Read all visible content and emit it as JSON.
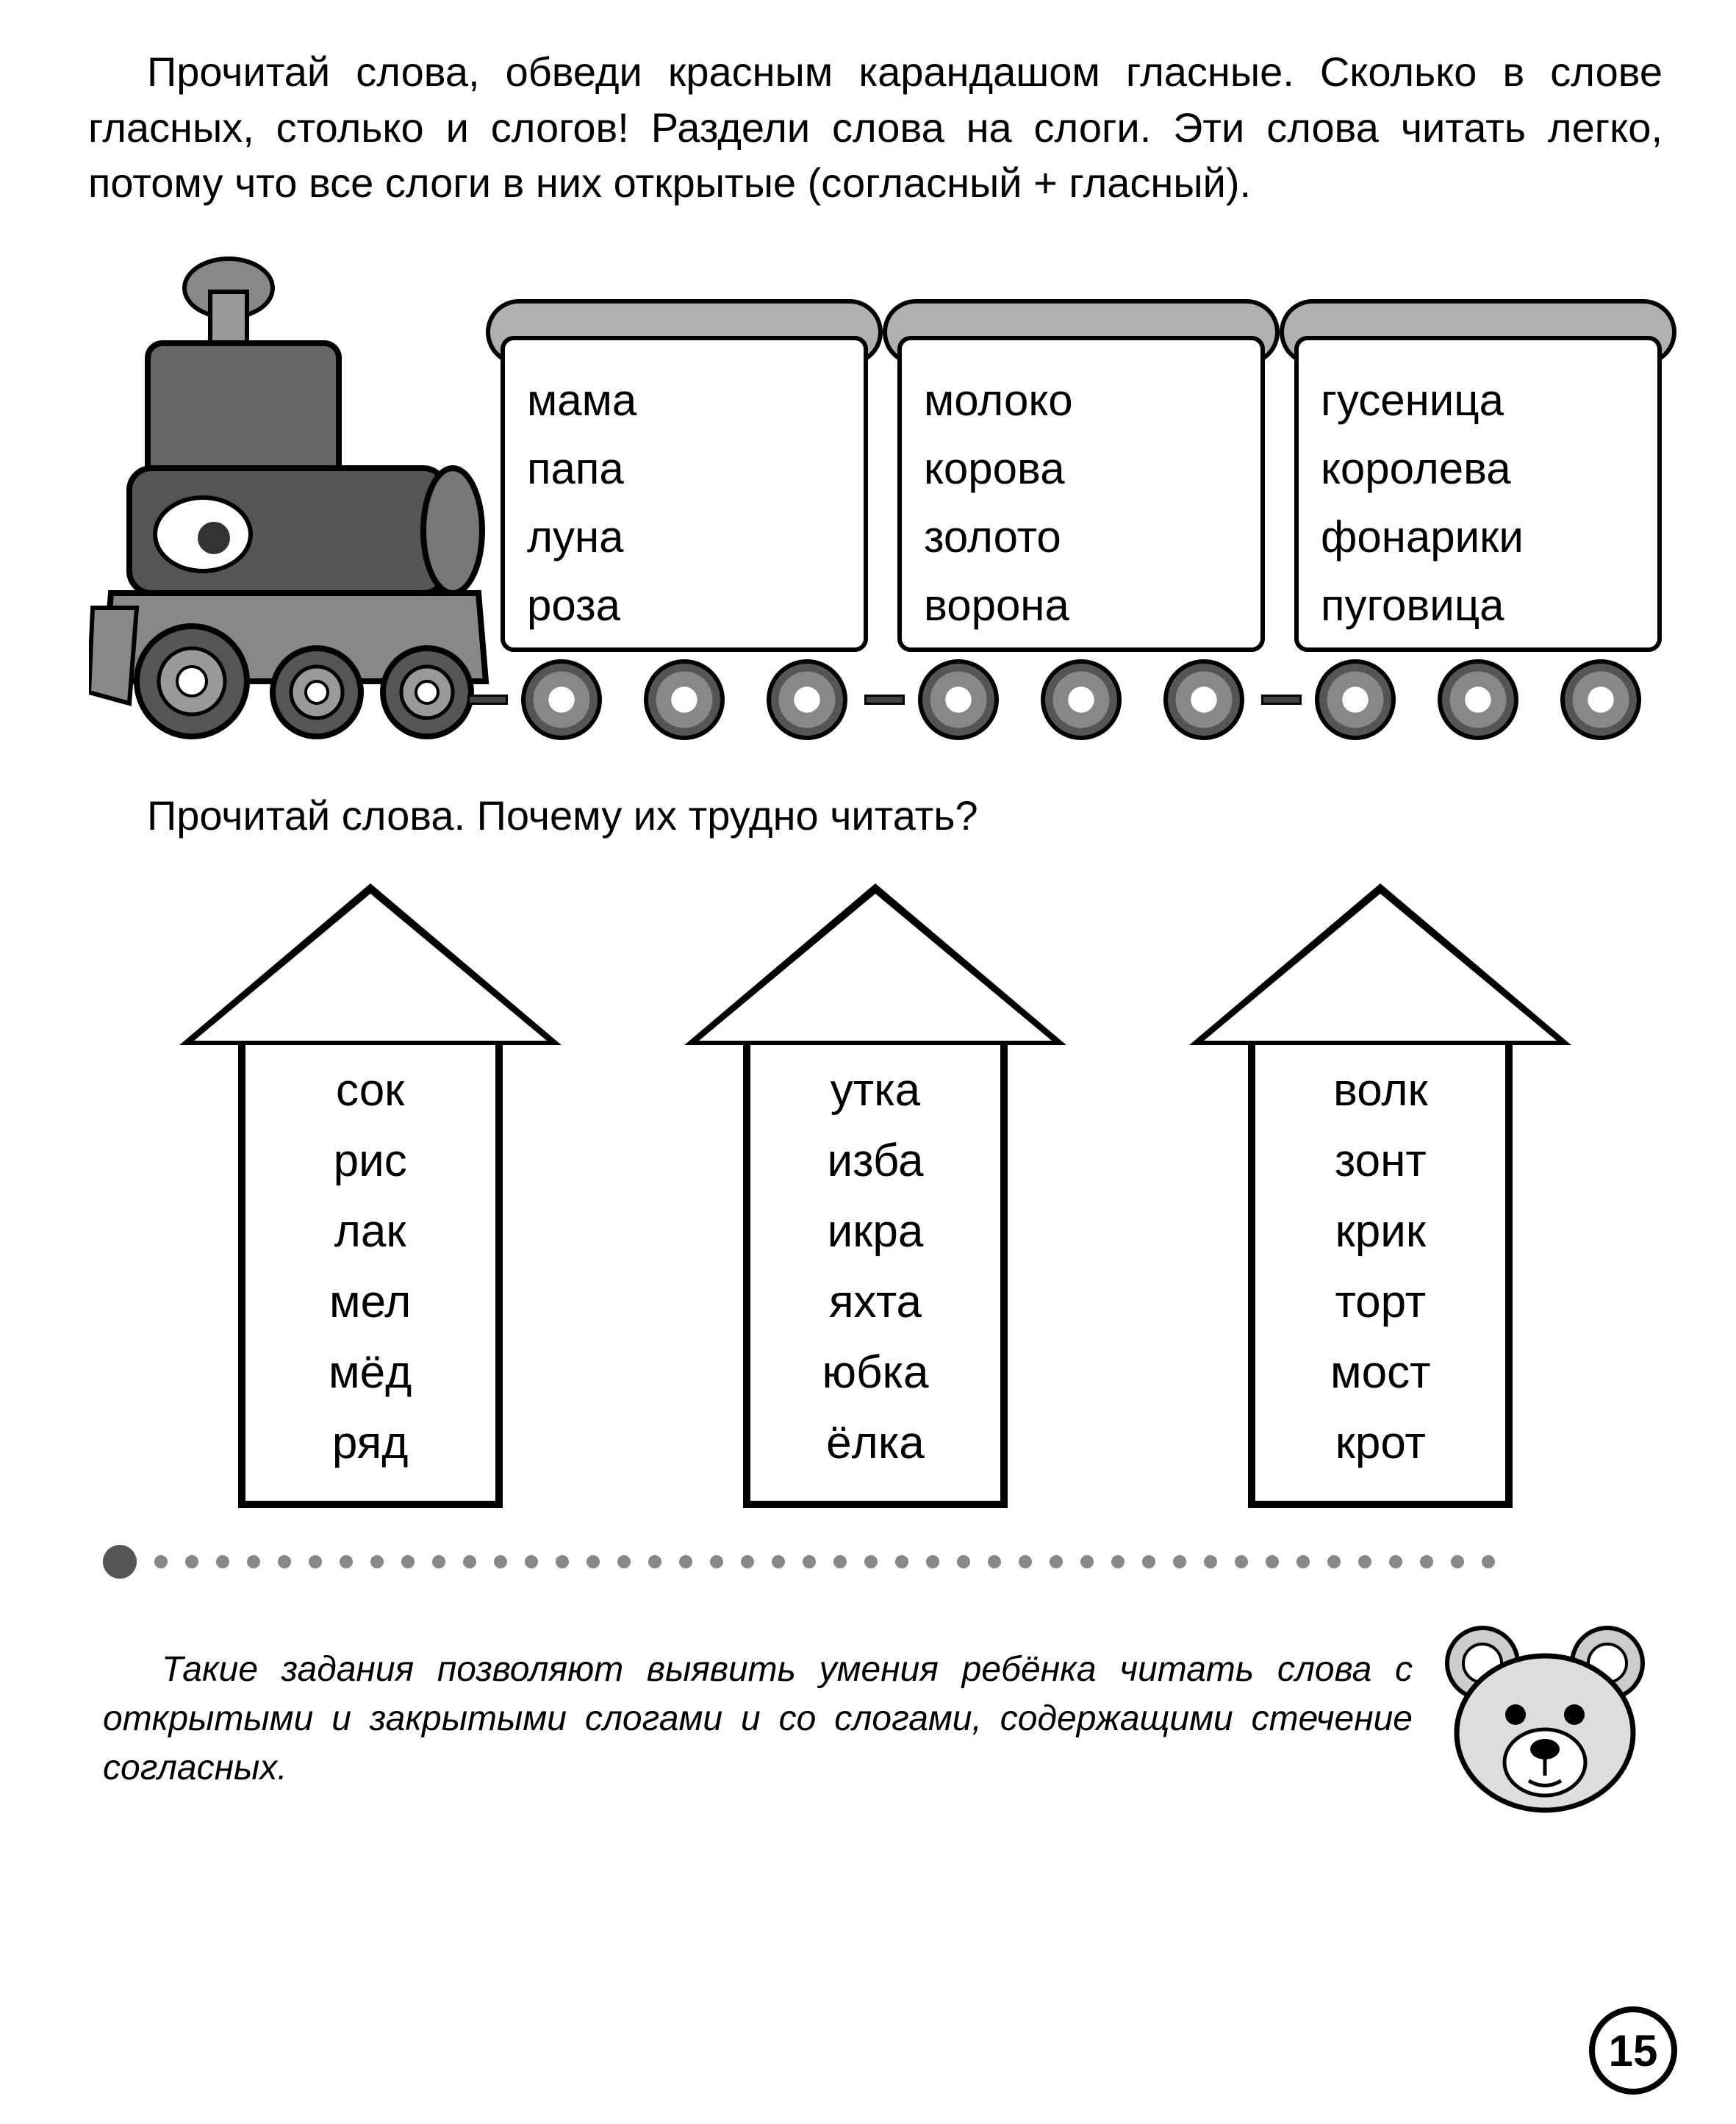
{
  "instruction": "Прочитай слова, обведи красным карандашом гласные. Сколько в слове гласных, столько и слогов! Раздели слова на слоги. Эти слова читать легко, потому что все слоги в них открытые (согласный + гласный).",
  "train": {
    "wagons": [
      {
        "words": [
          "мама",
          "папа",
          "луна",
          "роза"
        ]
      },
      {
        "words": [
          "молоко",
          "корова",
          "золото",
          "ворона"
        ]
      },
      {
        "words": [
          "гусеница",
          "королева",
          "фонарики",
          "пуговица"
        ]
      }
    ],
    "colors": {
      "lid": "#b0b0b0",
      "body": "#ffffff",
      "outline": "#000000",
      "wheel_outer": "#555555",
      "wheel_mid": "#888888",
      "wheel_inner": "#ffffff"
    },
    "word_fontsize": 60
  },
  "question": "Прочитай слова. Почему их трудно читать?",
  "arrows": [
    {
      "words": [
        "сок",
        "рис",
        "лак",
        "мел",
        "мёд",
        "ряд"
      ]
    },
    {
      "words": [
        "утка",
        "изба",
        "икра",
        "яхта",
        "юбка",
        "ёлка"
      ]
    },
    {
      "words": [
        "волк",
        "зонт",
        "крик",
        "торт",
        "мост",
        "крот"
      ]
    }
  ],
  "arrow_style": {
    "border_width": 10,
    "border_color": "#000000",
    "fill": "#ffffff",
    "word_fontsize": 62
  },
  "separator": {
    "big_dot_color": "#555555",
    "small_dot_color": "#888888",
    "small_dot_count": 44
  },
  "footer_note": "Такие задания позволяют выявить умения ребёнка читать слова с открытыми и закрытыми слогами и со слогами, содержащими стечение согласных.",
  "page_number": "15",
  "page_bg": "#ffffff",
  "text_color": "#000000"
}
